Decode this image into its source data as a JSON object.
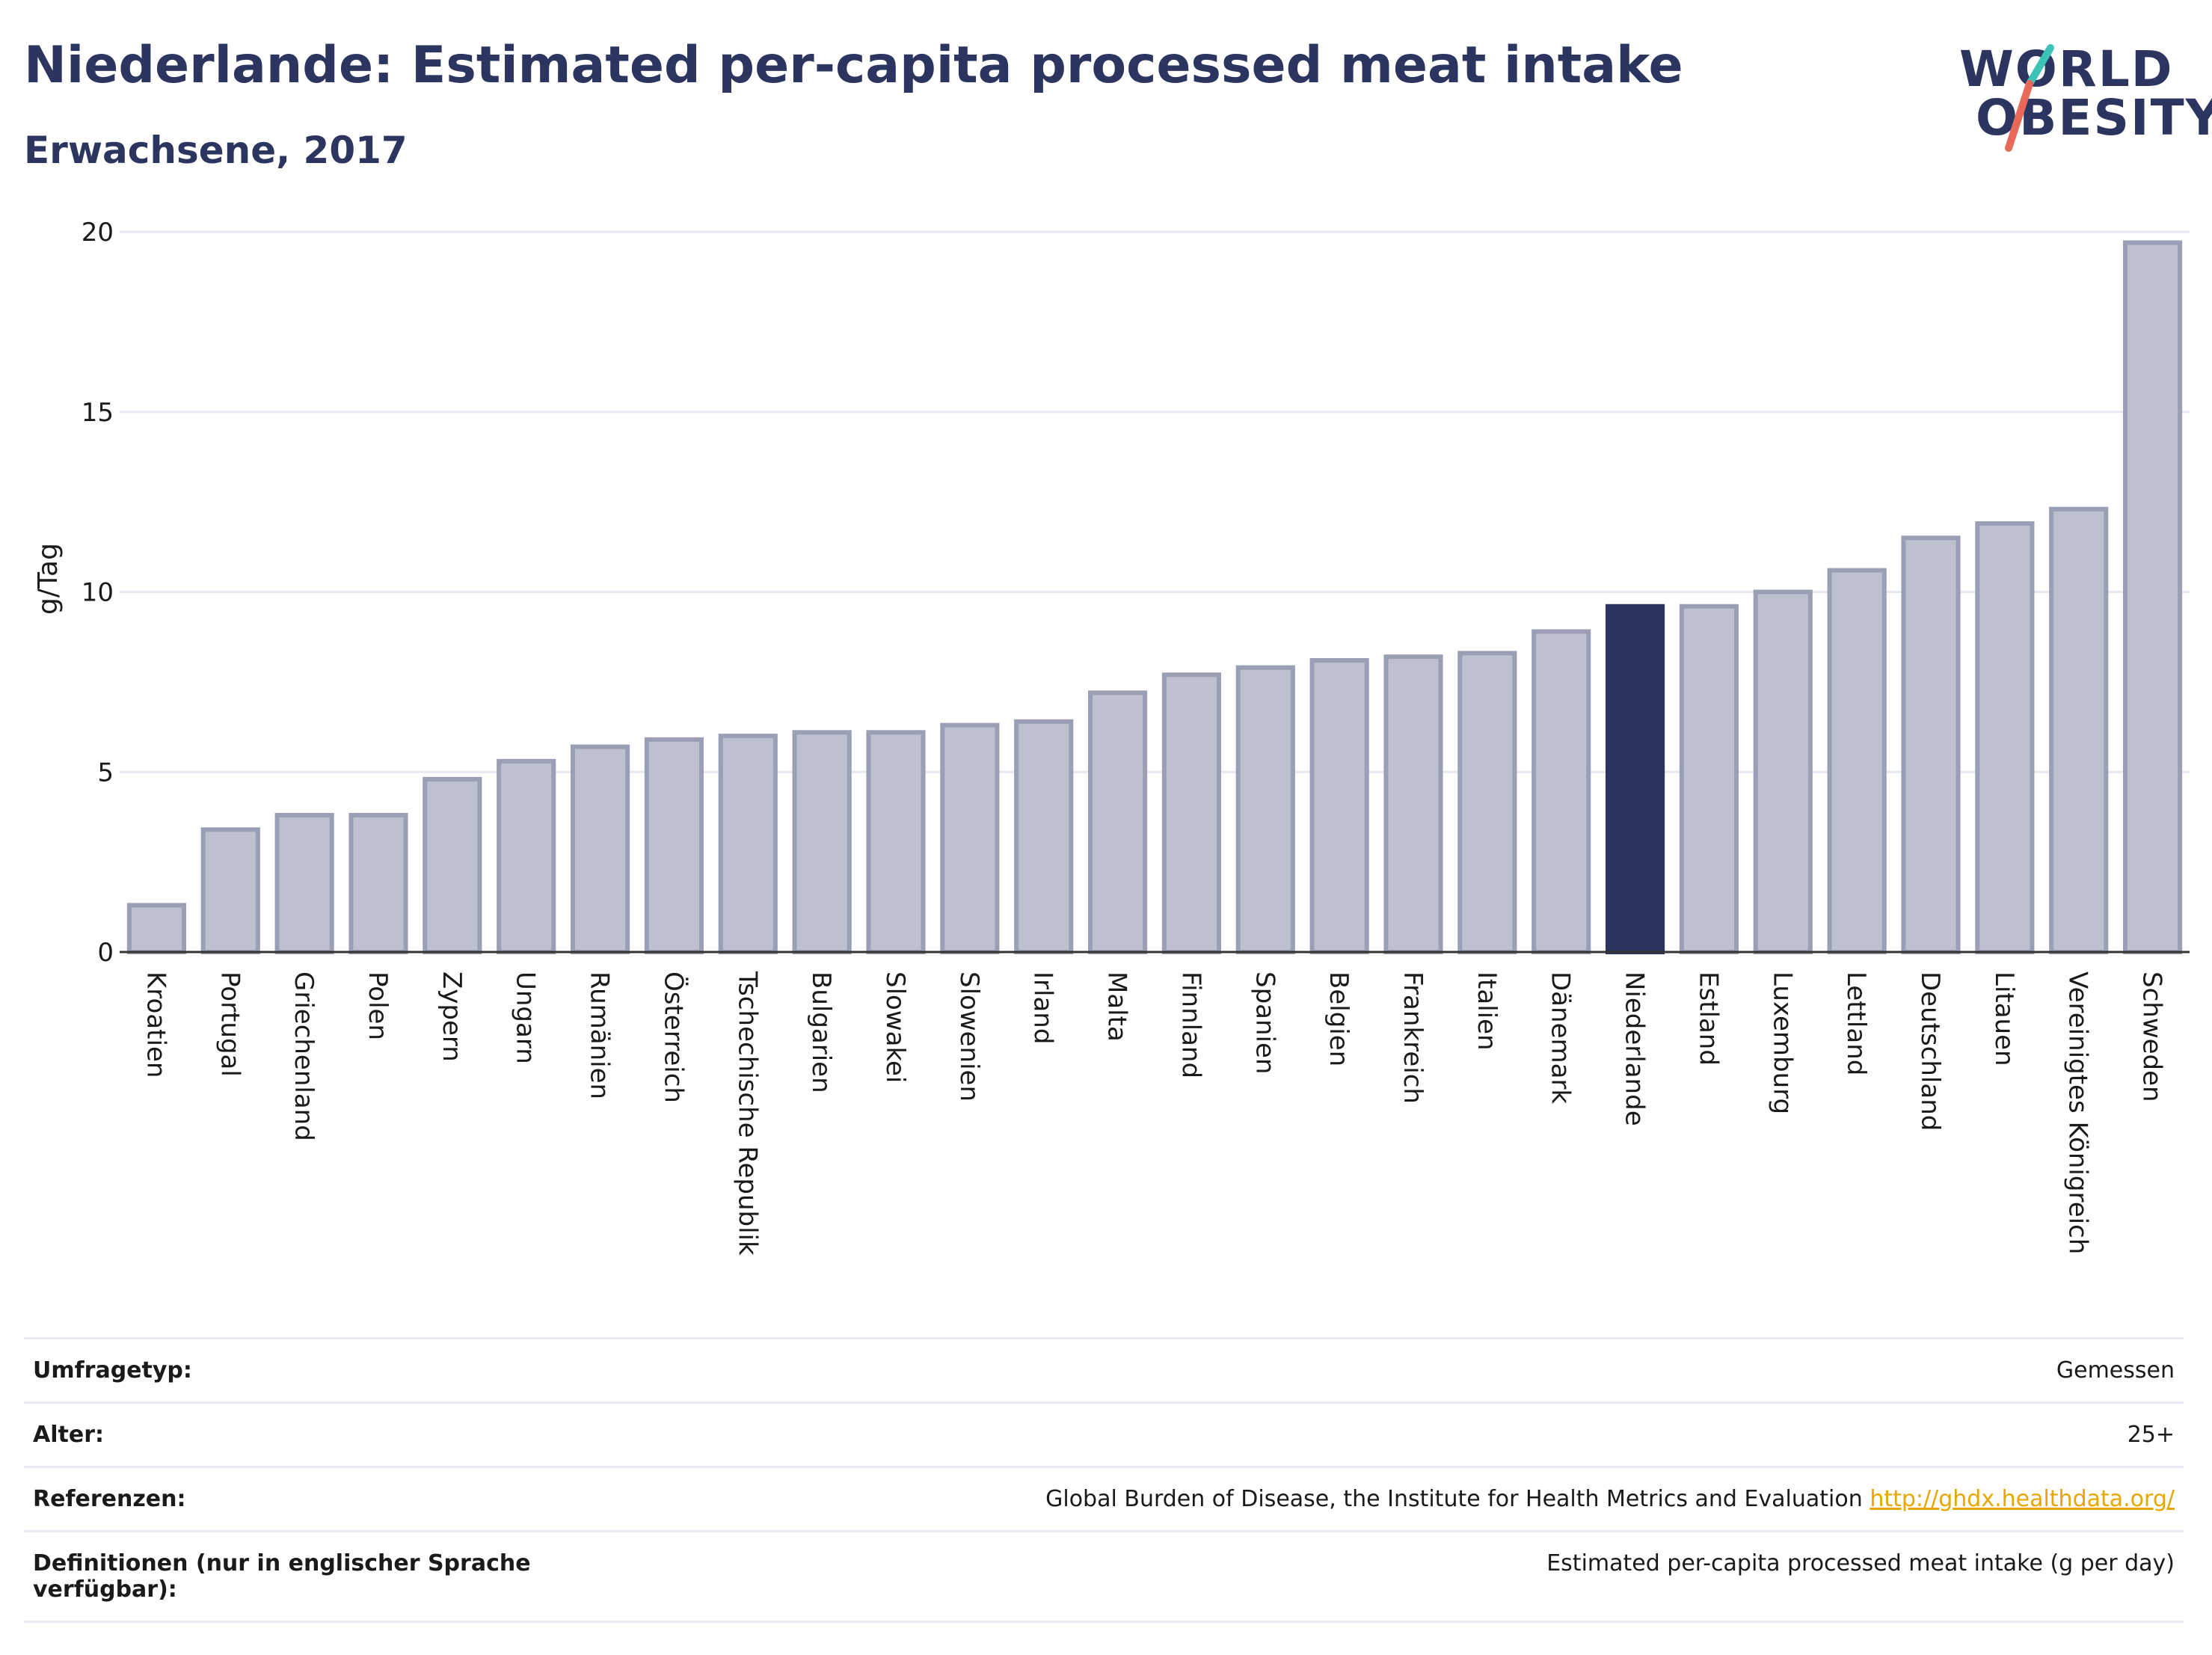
{
  "header": {
    "title": "Niederlande: Estimated per-capita processed meat intake",
    "subtitle": "Erwachsene, 2017"
  },
  "logo": {
    "line1": "WORLD",
    "line2": "OBESITY",
    "slash_colors": [
      "#3cc3b7",
      "#e8695a"
    ]
  },
  "colors": {
    "highlight": "#2b3560",
    "bar_fill": "#bcc0cf",
    "bar_stroke": "#9a9fb5",
    "grid": "#e6e8ef",
    "link": "#e8a600"
  },
  "chart_data": {
    "type": "bar",
    "ylabel": "g/Tag",
    "ylim": [
      0,
      20
    ],
    "yticks": [
      0,
      5,
      10,
      15,
      20
    ],
    "grid": true,
    "highlight": "Niederlande",
    "categories": [
      "Kroatien",
      "Portugal",
      "Griechenland",
      "Polen",
      "Zypern",
      "Ungarn",
      "Rumänien",
      "Österreich",
      "Tschechische Republik",
      "Bulgarien",
      "Slowakei",
      "Slowenien",
      "Irland",
      "Malta",
      "Finnland",
      "Spanien",
      "Belgien",
      "Frankreich",
      "Italien",
      "Dänemark",
      "Niederlande",
      "Estland",
      "Luxemburg",
      "Lettland",
      "Deutschland",
      "Litauen",
      "Vereinigtes Königreich",
      "Schweden"
    ],
    "values": [
      1.3,
      3.4,
      3.8,
      3.8,
      4.8,
      5.3,
      5.7,
      5.9,
      6.0,
      6.1,
      6.1,
      6.3,
      6.4,
      7.2,
      7.7,
      7.9,
      8.1,
      8.2,
      8.3,
      8.9,
      9.6,
      9.6,
      10.0,
      10.6,
      11.5,
      11.9,
      12.3,
      19.7
    ]
  },
  "info": {
    "survey_type_label": "Umfragetyp:",
    "survey_type_value": "Gemessen",
    "age_label": "Alter:",
    "age_value": "25+",
    "references_label": "Referenzen:",
    "references_text": "Global Burden of Disease, the Institute for Health Metrics and Evaluation",
    "references_link": "http://ghdx.healthdata.org/",
    "definitions_label": "Definitionen (nur in englischer Sprache verfügbar):",
    "definitions_value": "Estimated per-capita processed meat intake (g per day)"
  }
}
